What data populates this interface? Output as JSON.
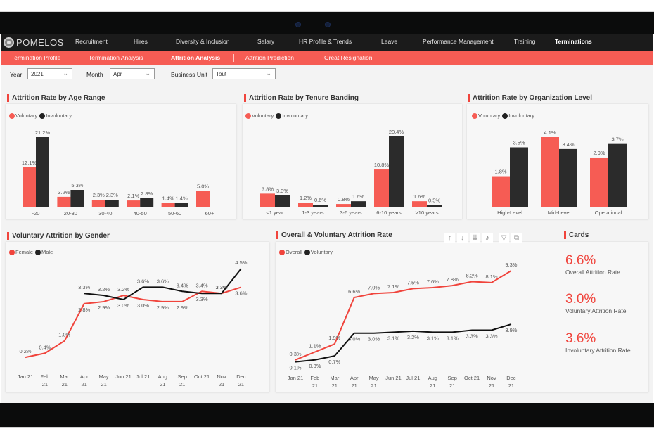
{
  "app": {
    "brand": "POMELOS"
  },
  "topnav": {
    "items": [
      "Recruitment",
      "Hires",
      "Diversity & Inclusion",
      "Salary",
      "HR Profile & Trends",
      "Leave",
      "Performance Management",
      "Training",
      "Terminations"
    ],
    "active": "Terminations"
  },
  "subnav": {
    "items": [
      "Termination Profile",
      "Termination Analysis",
      "Attrition Analysis",
      "Attrition Prediction",
      "Great Resignation"
    ],
    "active": "Attrition Analysis"
  },
  "filters": {
    "year": {
      "label": "Year",
      "value": "2021"
    },
    "month": {
      "label": "Month",
      "value": "Apr"
    },
    "business_unit": {
      "label": "Business Unit",
      "value": "Tout"
    }
  },
  "colors": {
    "accent": "#f65c54",
    "voluntary": "#f65c54",
    "involuntary": "#2b2b2b",
    "line_red": "#f0443c",
    "line_black": "#111111"
  },
  "cards": {
    "title": "Cards",
    "items": [
      {
        "value": "6.6%",
        "label": "Overall Attrition Rate"
      },
      {
        "value": "3.0%",
        "label": "Voluntary Attrition Rate"
      },
      {
        "value": "3.6%",
        "label": "Involuntary Attrition Rate"
      }
    ]
  },
  "toolbar": {
    "icons": [
      "arrow-up-icon",
      "arrow-down-icon",
      "double-arrow-down-icon",
      "expand-hierarchy-icon",
      "filter-icon",
      "focus-mode-icon"
    ]
  },
  "chart_data": [
    {
      "id": "age",
      "type": "bar",
      "title": "Attrition Rate by Age Range",
      "categories": [
        "-20",
        "20-30",
        "30-40",
        "40-50",
        "50-60",
        "60+"
      ],
      "series": [
        {
          "name": "Voluntary",
          "values": [
            12.1,
            3.2,
            2.3,
            2.1,
            1.4,
            5.0
          ]
        },
        {
          "name": "Involuntary",
          "values": [
            21.2,
            5.3,
            2.3,
            2.8,
            1.4,
            null
          ]
        }
      ],
      "legend": "top-left",
      "ylim": [
        0,
        21.2
      ],
      "grid": false
    },
    {
      "id": "tenure",
      "type": "bar",
      "title": "Attrition Rate by Tenure Banding",
      "categories": [
        "<1 year",
        "1-3 years",
        "3-6 years",
        "6-10 years",
        ">10 years"
      ],
      "series": [
        {
          "name": "Voluntary",
          "values": [
            3.8,
            1.2,
            0.8,
            10.8,
            1.6
          ]
        },
        {
          "name": "Involuntary",
          "values": [
            3.3,
            0.6,
            1.6,
            20.4,
            0.5
          ]
        }
      ],
      "legend": "top-left",
      "ylim": [
        0,
        20.4
      ],
      "grid": false
    },
    {
      "id": "org",
      "type": "bar",
      "title": "Attrition Rate by Organization Level",
      "categories": [
        "High-Level",
        "Mid-Level",
        "Operational"
      ],
      "series": [
        {
          "name": "Voluntary",
          "values": [
            1.8,
            4.1,
            2.9
          ]
        },
        {
          "name": "Involuntary",
          "values": [
            3.5,
            3.4,
            3.7
          ]
        }
      ],
      "legend": "top-left",
      "ylim": [
        0,
        4.1
      ],
      "grid": false
    },
    {
      "id": "gender",
      "type": "line",
      "title": "Voluntary Attrition by Gender",
      "x": [
        "Jan 21",
        "Feb 21",
        "Mar 21",
        "Apr 21",
        "May 21",
        "Jun 21",
        "Jul 21",
        "Aug 21",
        "Sep 21",
        "Oct 21",
        "Nov 21",
        "Dec 21"
      ],
      "series": [
        {
          "name": "Female",
          "values": [
            0.2,
            0.4,
            1.0,
            2.8,
            2.9,
            3.2,
            3.0,
            2.9,
            2.9,
            3.4,
            3.3,
            3.6
          ]
        },
        {
          "name": "Male",
          "values": [
            null,
            null,
            null,
            3.3,
            3.2,
            3.0,
            3.6,
            3.6,
            3.4,
            3.3,
            3.3,
            4.5
          ]
        }
      ],
      "legend": "top-left",
      "ylim": [
        0,
        4.5
      ],
      "grid": false
    },
    {
      "id": "overall",
      "type": "line",
      "title": "Overall & Voluntary Attrition Rate",
      "x": [
        "Jan 21",
        "Feb 21",
        "Mar 21",
        "Apr 21",
        "May 21",
        "Jun 21",
        "Jul 21",
        "Aug 21",
        "Sep 21",
        "Oct 21",
        "Nov 21",
        "Dec 21"
      ],
      "series": [
        {
          "name": "Overall",
          "values": [
            0.3,
            1.1,
            1.9,
            6.6,
            7.0,
            7.1,
            7.5,
            7.6,
            7.8,
            8.2,
            8.1,
            9.3
          ]
        },
        {
          "name": "Voluntary",
          "values": [
            0.1,
            0.3,
            0.7,
            3.0,
            3.0,
            3.1,
            3.2,
            3.1,
            3.1,
            3.3,
            3.3,
            3.9
          ]
        }
      ],
      "legend": "top-left",
      "ylim": [
        0,
        9.3
      ],
      "grid": false
    }
  ]
}
